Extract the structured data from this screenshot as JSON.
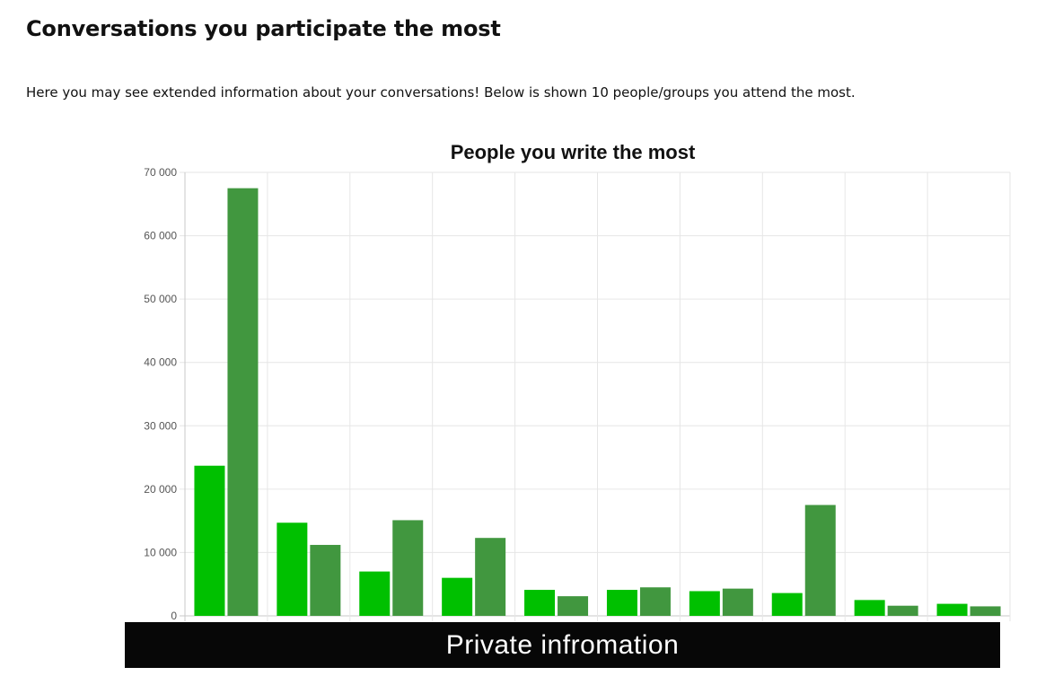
{
  "page": {
    "title": "Conversations you participate the most",
    "intro": "Here you may see extended information about your conversations! Below is shown 10 people/groups you attend the most."
  },
  "redaction_label": "Private infromation",
  "chart_data": {
    "type": "bar",
    "title": "People you write the most",
    "xlabel": "",
    "ylabel": "",
    "ylim": [
      0,
      70000
    ],
    "yticks": [
      0,
      10000,
      20000,
      30000,
      40000,
      50000,
      60000,
      70000
    ],
    "ytick_labels": [
      "0",
      "10 000",
      "20 000",
      "30 000",
      "40 000",
      "50 000",
      "60 000",
      "70 000"
    ],
    "grid": true,
    "categories": [
      "",
      "",
      "",
      "",
      "",
      "",
      "",
      "",
      "",
      ""
    ],
    "series": [
      {
        "color": "#00c000",
        "values": [
          23700,
          14700,
          7000,
          6000,
          4100,
          4100,
          3900,
          3600,
          2500,
          1900
        ]
      },
      {
        "color": "#41973f",
        "values": [
          67500,
          11200,
          15100,
          12300,
          3100,
          4500,
          4300,
          17500,
          1600,
          1500
        ]
      }
    ]
  }
}
